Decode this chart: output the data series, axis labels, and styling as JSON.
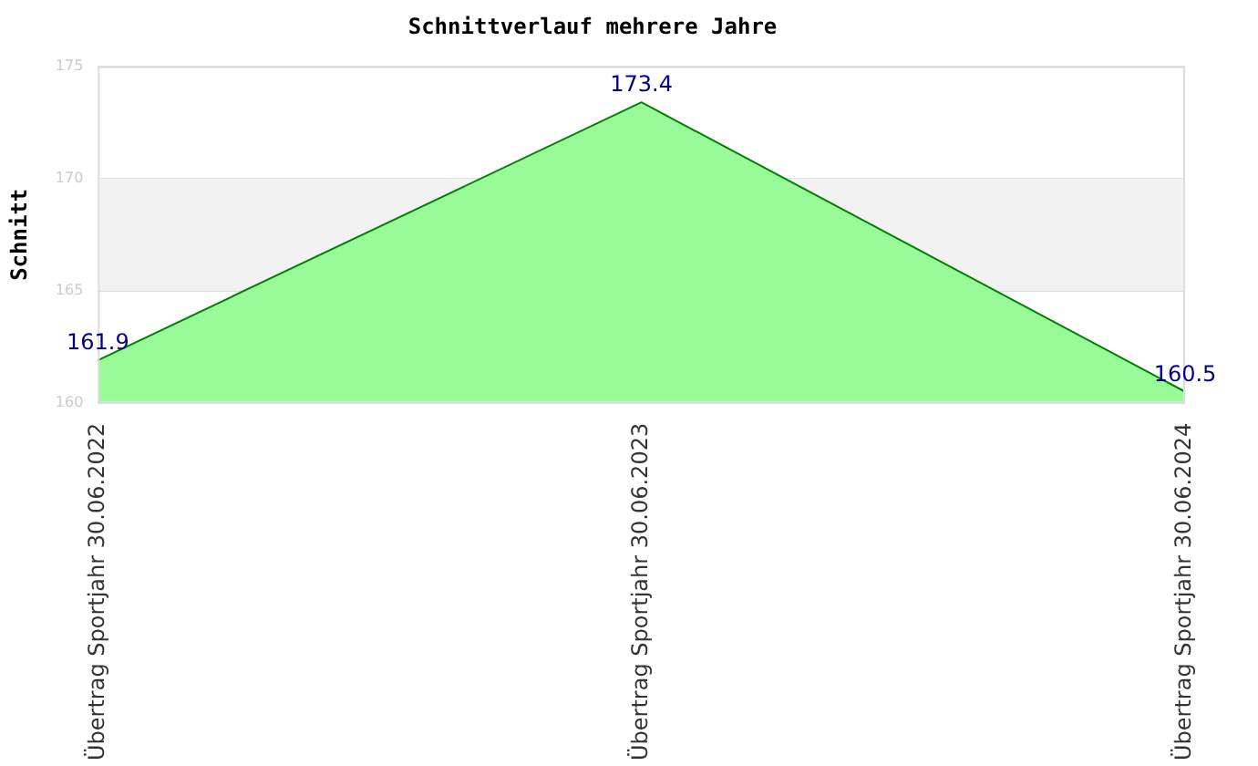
{
  "chart_data": {
    "type": "area",
    "title": "Schnittverlauf mehrere Jahre",
    "ylabel": "Schnitt",
    "categories": [
      "Übertrag Sportjahr 30.06.2022",
      "Übertrag Sportjahr 30.06.2023",
      "Übertrag Sportjahr 30.06.2024"
    ],
    "series": [
      {
        "color": "#008000",
        "values": [
          161.9,
          173.4,
          160.5
        ]
      }
    ],
    "ylim": [
      160,
      175
    ],
    "yticks": [
      160,
      165,
      170,
      175
    ],
    "grid": "y",
    "bands": [
      {
        "axis": "y",
        "from": 165,
        "to": 170,
        "color": "#f2f2f2"
      }
    ],
    "data_labels": true,
    "legend": false
  }
}
